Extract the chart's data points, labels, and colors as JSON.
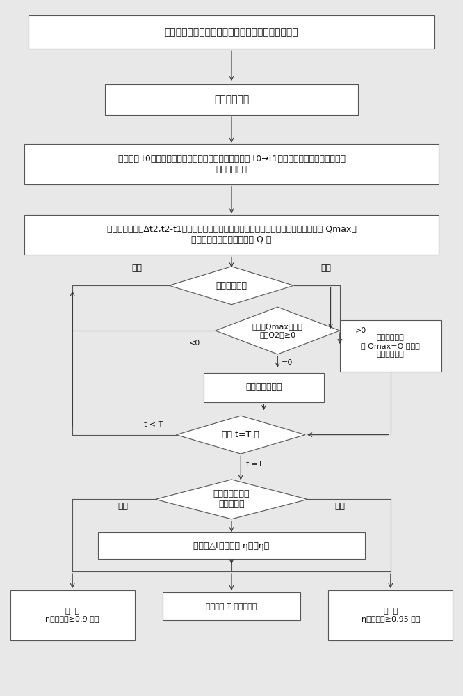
{
  "title": "构建农田土壤湿度和灌溉水量的分布式联合监控系统",
  "box1": "计算机初始化",
  "box2_line1": "初始时刻 t0，启动计算机和各土壤湿度无线传感器，在 t0→t1，输入实时参数，计算机采集",
  "box2_line2": "第一采样间隔",
  "box3_line1": "在第二采样时刻Δt2,t2-t1，计算：单位容积土壤内的温度平均值，田地土壤最大需水量 Qmax，",
  "box3_line2": "土壤当前实际需灌溉的水量 Q 实",
  "diamond1": "判别种植方式",
  "label_datian": "大田",
  "label_wenshi": "温室",
  "diamond2_line1": "判断（Qmax－已灌",
  "diamond2_line2": "水量Q2）≥0",
  "label_lt0": "<0",
  "label_gt0": ">0",
  "box4": "切断磁力控制阀",
  "box5_line1": "继续灌水，直",
  "box5_line2": "到 Qmax=Q 实，切",
  "box5_line3": "断磁力控制阀",
  "label_eq0": "=0",
  "diamond3": "判断 t=T 否",
  "label_tltT": "t < T",
  "label_teqT": "t =T",
  "diamond4_line1": "判别田地种类：",
  "diamond4_line2": "水田或旱田",
  "label_hantian": "旱田",
  "label_shuitian": "水田",
  "box6": "计算各△t内平均的 η水或η旱",
  "box7_line1": "旱  田",
  "box7_line2": "η旱平均值≥0.9 报警",
  "box8": "一个周期 T 内监督结束",
  "box9_line1": "水  田",
  "box9_line2": "η水平均值≥0.95 报警",
  "bg_color": "#e8e8e8",
  "box_color": "#ffffff",
  "border_color": "#555555",
  "arrow_color": "#333333",
  "font_color": "#111111",
  "font_size": 9,
  "title_font_size": 10
}
